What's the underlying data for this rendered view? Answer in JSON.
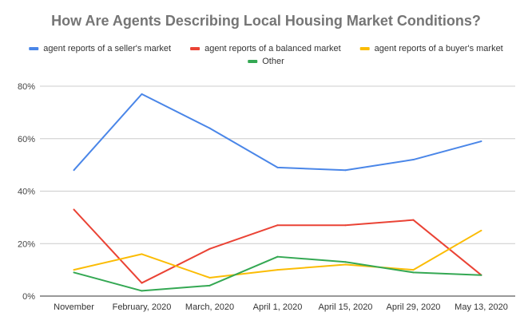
{
  "chart_data": {
    "type": "line",
    "title": "How Are Agents Describing Local Housing Market Conditions?",
    "xlabel": "",
    "ylabel": "",
    "ylim": [
      0,
      80
    ],
    "yticks": [
      0,
      20,
      40,
      60,
      80
    ],
    "ytick_labels": [
      "0%",
      "20%",
      "40%",
      "60%",
      "80%"
    ],
    "grid": true,
    "legend_position": "top",
    "categories": [
      "November",
      "February, 2020",
      "March, 2020",
      "April 1, 2020",
      "April 15, 2020",
      "April 29, 2020",
      "May 13, 2020"
    ],
    "series": [
      {
        "name": "agent reports of a seller's market",
        "color": "#4a86e8",
        "values": [
          48,
          77,
          64,
          49,
          48,
          52,
          59
        ]
      },
      {
        "name": "agent reports of a balanced market",
        "color": "#ea4335",
        "values": [
          33,
          5,
          18,
          27,
          27,
          29,
          8
        ]
      },
      {
        "name": "agent reports of a buyer's market",
        "color": "#fbbc04",
        "values": [
          10,
          16,
          7,
          10,
          12,
          10,
          25
        ]
      },
      {
        "name": "Other",
        "color": "#34a853",
        "values": [
          9,
          2,
          4,
          15,
          13,
          9,
          8
        ]
      }
    ]
  }
}
